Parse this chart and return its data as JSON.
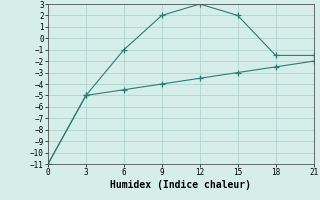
{
  "line1_x": [
    0,
    3,
    6,
    9,
    12,
    15,
    18,
    21
  ],
  "line1_y": [
    -11,
    -5,
    -1,
    2,
    3,
    2,
    -1.5,
    -1.5
  ],
  "line2_x": [
    0,
    3,
    6,
    9,
    12,
    15,
    18,
    21
  ],
  "line2_y": [
    -11,
    -5,
    -4.5,
    -4.0,
    -3.5,
    -3.0,
    -2.5,
    -2.0
  ],
  "line_color": "#2a7d72",
  "bg_color": "#d6eee9",
  "grid_color": "#aacfc8",
  "xlabel": "Humidex (Indice chaleur)",
  "xlim": [
    0,
    21
  ],
  "ylim": [
    -11,
    3
  ],
  "xticks": [
    0,
    3,
    6,
    9,
    12,
    15,
    18,
    21
  ],
  "yticks": [
    3,
    2,
    1,
    0,
    -1,
    -2,
    -3,
    -4,
    -5,
    -6,
    -7,
    -8,
    -9,
    -10,
    -11
  ],
  "xlabel_fontsize": 7,
  "tick_fontsize": 5.5
}
